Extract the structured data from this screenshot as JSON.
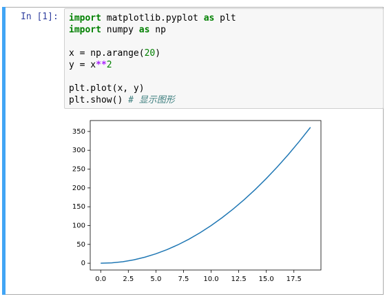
{
  "prompt": "In [1]:",
  "code": [
    [
      {
        "text": "import",
        "kind": "keyword"
      },
      {
        "text": " matplotlib.pyplot ",
        "kind": "plain"
      },
      {
        "text": "as",
        "kind": "keyword"
      },
      {
        "text": " plt",
        "kind": "plain"
      }
    ],
    [
      {
        "text": "import",
        "kind": "keyword"
      },
      {
        "text": " numpy ",
        "kind": "plain"
      },
      {
        "text": "as",
        "kind": "keyword"
      },
      {
        "text": " np",
        "kind": "plain"
      }
    ],
    [],
    [
      {
        "text": "x = np.arange(",
        "kind": "plain"
      },
      {
        "text": "20",
        "kind": "number"
      },
      {
        "text": ")",
        "kind": "plain"
      }
    ],
    [
      {
        "text": "y = x",
        "kind": "plain"
      },
      {
        "text": "**",
        "kind": "operator"
      },
      {
        "text": "2",
        "kind": "number"
      }
    ],
    [],
    [
      {
        "text": "plt.plot(x, y)",
        "kind": "plain"
      }
    ],
    [
      {
        "text": "plt.show() ",
        "kind": "plain"
      },
      {
        "text": "# 显示图形",
        "kind": "comment"
      }
    ]
  ],
  "chart_data": {
    "type": "line",
    "x": [
      0,
      1,
      2,
      3,
      4,
      5,
      6,
      7,
      8,
      9,
      10,
      11,
      12,
      13,
      14,
      15,
      16,
      17,
      18,
      19
    ],
    "values": [
      0,
      1,
      4,
      9,
      16,
      25,
      36,
      49,
      64,
      81,
      100,
      121,
      144,
      169,
      196,
      225,
      256,
      289,
      324,
      361
    ],
    "color": "#1f77b4",
    "xlim": [
      -0.95,
      19.95
    ],
    "ylim": [
      -18.05,
      379.05
    ],
    "xticks": [
      {
        "value": 0,
        "label": "0.0"
      },
      2.5,
      {
        "value": 5,
        "label": "5.0"
      },
      7.5,
      {
        "value": 10,
        "label": "10.0"
      },
      12.5,
      {
        "value": 15,
        "label": "15.0"
      },
      17.5
    ],
    "yticks": [
      0,
      50,
      100,
      150,
      200,
      250,
      300,
      350
    ]
  }
}
